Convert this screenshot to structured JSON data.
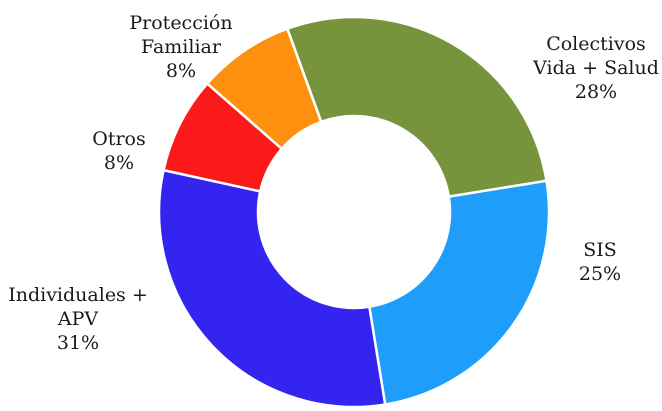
{
  "chart_data": {
    "type": "pie",
    "variant": "donut",
    "title": "",
    "start_angle_deg": -20,
    "direction": "clockwise",
    "slices": [
      {
        "label_lines": [
          "Colectivos",
          "Vida + Salud"
        ],
        "value": 28,
        "value_label": "28%",
        "color": "#77933c"
      },
      {
        "label_lines": [
          "SIS"
        ],
        "value": 25,
        "value_label": "25%",
        "color": "#1e9efa"
      },
      {
        "label_lines": [
          "Individuales +",
          "APV"
        ],
        "value": 31,
        "value_label": "31%",
        "color": "#3324f0"
      },
      {
        "label_lines": [
          "Otros"
        ],
        "value": 8,
        "value_label": "8%",
        "color": "#fc1919"
      },
      {
        "label_lines": [
          "Protección",
          "Familiar"
        ],
        "value": 8,
        "value_label": "8%",
        "color": "#fd910f"
      }
    ]
  }
}
